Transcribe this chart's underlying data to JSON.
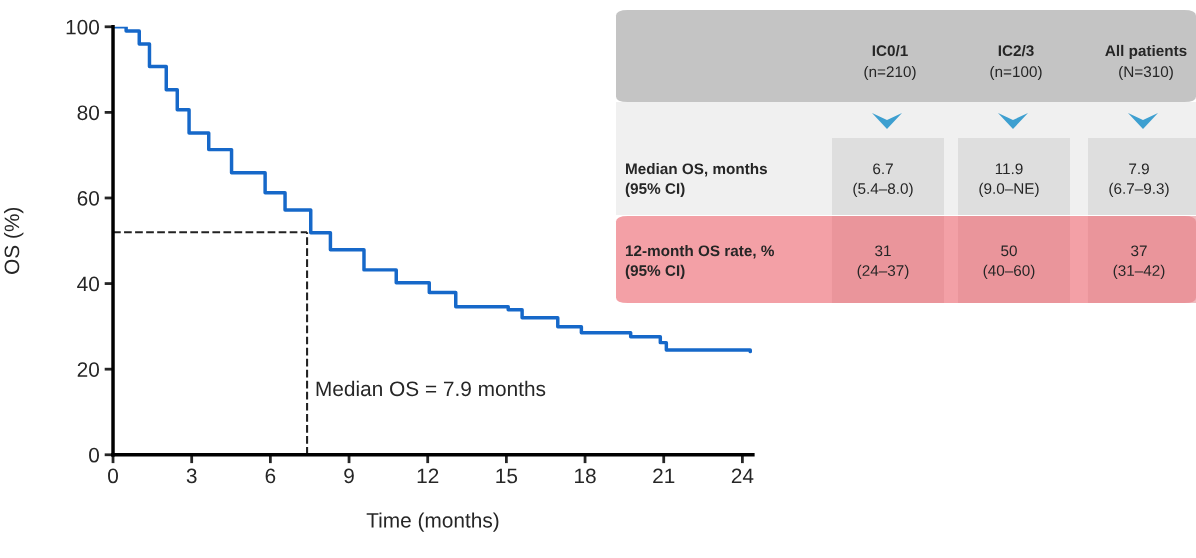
{
  "chart_data": {
    "type": "step",
    "xlabel": "Time (months)",
    "ylabel": "OS (%)",
    "x": [
      0,
      0.5,
      1.0,
      1.39,
      2.03,
      2.45,
      2.9,
      3.65,
      4.52,
      5.8,
      6.56,
      7.54,
      8.29,
      9.57,
      10.8,
      12.06,
      13.07,
      15.07,
      15.6,
      16.96,
      17.86,
      19.74,
      20.87,
      21.1,
      24.3
    ],
    "series": [
      {
        "color": "#1668c9",
        "values": [
          100,
          99,
          96,
          90.7,
          85.3,
          80.6,
          75.2,
          71.3,
          65.9,
          61.2,
          57.2,
          51.9,
          47.9,
          43.2,
          40.2,
          37.9,
          34.6,
          33.9,
          32.0,
          29.9,
          28.5,
          27.6,
          26.2,
          24.5,
          24.1
        ]
      }
    ],
    "xlim": [
      0,
      24.4
    ],
    "ylim": [
      0,
      100
    ],
    "xticks": [
      0,
      3,
      6,
      9,
      12,
      15,
      18,
      21,
      24
    ],
    "yticks": [
      0,
      20,
      40,
      60,
      80,
      100
    ],
    "grid": false,
    "ref_lines": [
      {
        "axis": "x",
        "value": 7.4,
        "line_style": "dashed",
        "color": "#222222"
      },
      {
        "axis": "y",
        "value": 52,
        "line_style": "dashed",
        "color": "#222222"
      }
    ],
    "annotations": [
      "Median OS = 7.9 months",
      "IC0/1\n(n=210)",
      "IC2/3\n(n=100)",
      "All patients\n(N=310)",
      "Median OS, months\n(95% CI)",
      "6.7\n(5.4–8.0)",
      "11.9\n(9.0–NE)",
      "7.9\n(6.7–9.3)",
      "12-month OS rate, %\n(95% CI)",
      "31\n(24–37)",
      "50\n(40–60)",
      "37\n(31–42)"
    ]
  }
}
